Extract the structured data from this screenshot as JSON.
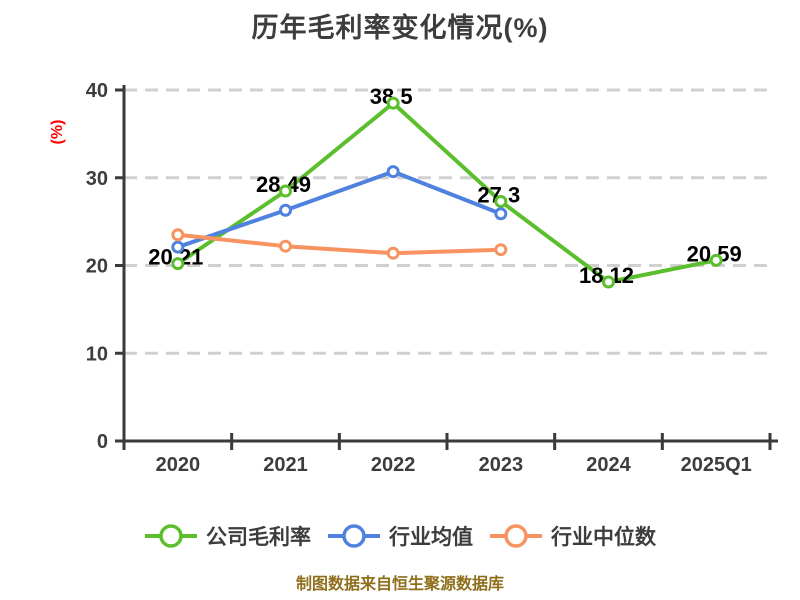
{
  "page": {
    "title": "历年毛利率变化情况(%)",
    "footer": "制图数据来自恒生聚源数据库"
  },
  "chart_data": {
    "type": "line",
    "title": "历年毛利率变化情况(%)",
    "xlabel": "",
    "ylabel": "(%)",
    "categories": [
      "2020",
      "2021",
      "2022",
      "2023",
      "2024",
      "2025Q1"
    ],
    "series": [
      {
        "name": "公司毛利率",
        "color": "#5BBF2D",
        "values": [
          20.21,
          28.49,
          38.5,
          27.3,
          18.12,
          20.59
        ],
        "labeled": true,
        "data_labels": [
          "20.21",
          "28.49",
          "38.5",
          "27.3",
          "18.12",
          "20.59"
        ]
      },
      {
        "name": "行业均值",
        "color": "#4F81DE",
        "values": [
          22.1,
          26.3,
          30.7,
          25.9,
          null,
          null
        ],
        "labeled": false,
        "data_labels": []
      },
      {
        "name": "行业中位数",
        "color": "#F8935F",
        "values": [
          23.5,
          22.2,
          21.4,
          21.8,
          null,
          null
        ],
        "labeled": false,
        "data_labels": []
      }
    ],
    "ylim": [
      0,
      40
    ],
    "yticks": [
      0,
      10,
      20,
      30,
      40
    ],
    "grid": "dashed-horizontal",
    "legend_position": "bottom",
    "marker": "white-filled-circle",
    "colors": {
      "axis": "#3A3A3A",
      "tick_text": "#3D3D3D",
      "grid": "#D0D0D0",
      "ylabel_text": "#FF0000",
      "data_label_text": "#000000",
      "background": "#FFFFFF"
    }
  }
}
